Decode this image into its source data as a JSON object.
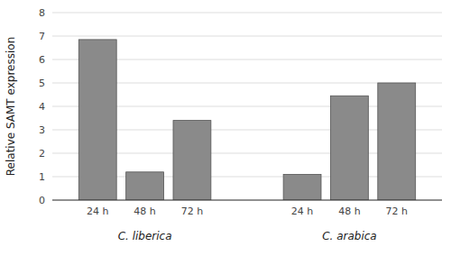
{
  "chart_data": {
    "type": "bar",
    "ylabel": "Relative SAMT expression",
    "categories": [
      "24 h",
      "48 h",
      "72 h",
      "24 h",
      "48 h",
      "72 h"
    ],
    "values": [
      6.85,
      1.2,
      3.4,
      1.1,
      4.45,
      5.0
    ],
    "annotations": [
      "C. liberica",
      "C. arabica"
    ],
    "color": "#8a8a8a",
    "ylim": [
      0,
      8
    ],
    "yticks": [
      0,
      1,
      2,
      3,
      4,
      5,
      6,
      7,
      8
    ],
    "grid": true
  }
}
